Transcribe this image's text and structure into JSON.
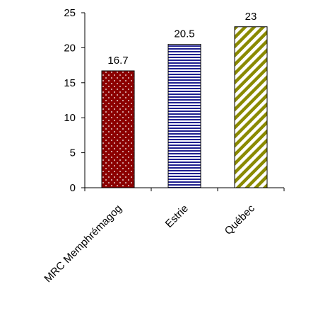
{
  "chart_data": {
    "type": "bar",
    "title": "",
    "xlabel": "",
    "ylabel": "",
    "categories": [
      "MRC Memphrémagog",
      "Estrie",
      "Québec"
    ],
    "values": [
      16.7,
      20.5,
      23
    ],
    "value_labels": [
      "16.7",
      "20.5",
      "23"
    ],
    "ylim": [
      0,
      25
    ],
    "yticks": [
      0,
      5,
      10,
      15,
      20,
      25
    ],
    "grid": false,
    "legend": "none",
    "bar_styles": [
      {
        "category": "MRC Memphrémagog",
        "fill": "#8b0000",
        "pattern": "white-dots"
      },
      {
        "category": "Estrie",
        "fill": "#1f1f8f",
        "pattern": "horizontal-white-stripes"
      },
      {
        "category": "Québec",
        "fill": "#8a8a00",
        "pattern": "diagonal-stripes"
      }
    ]
  }
}
